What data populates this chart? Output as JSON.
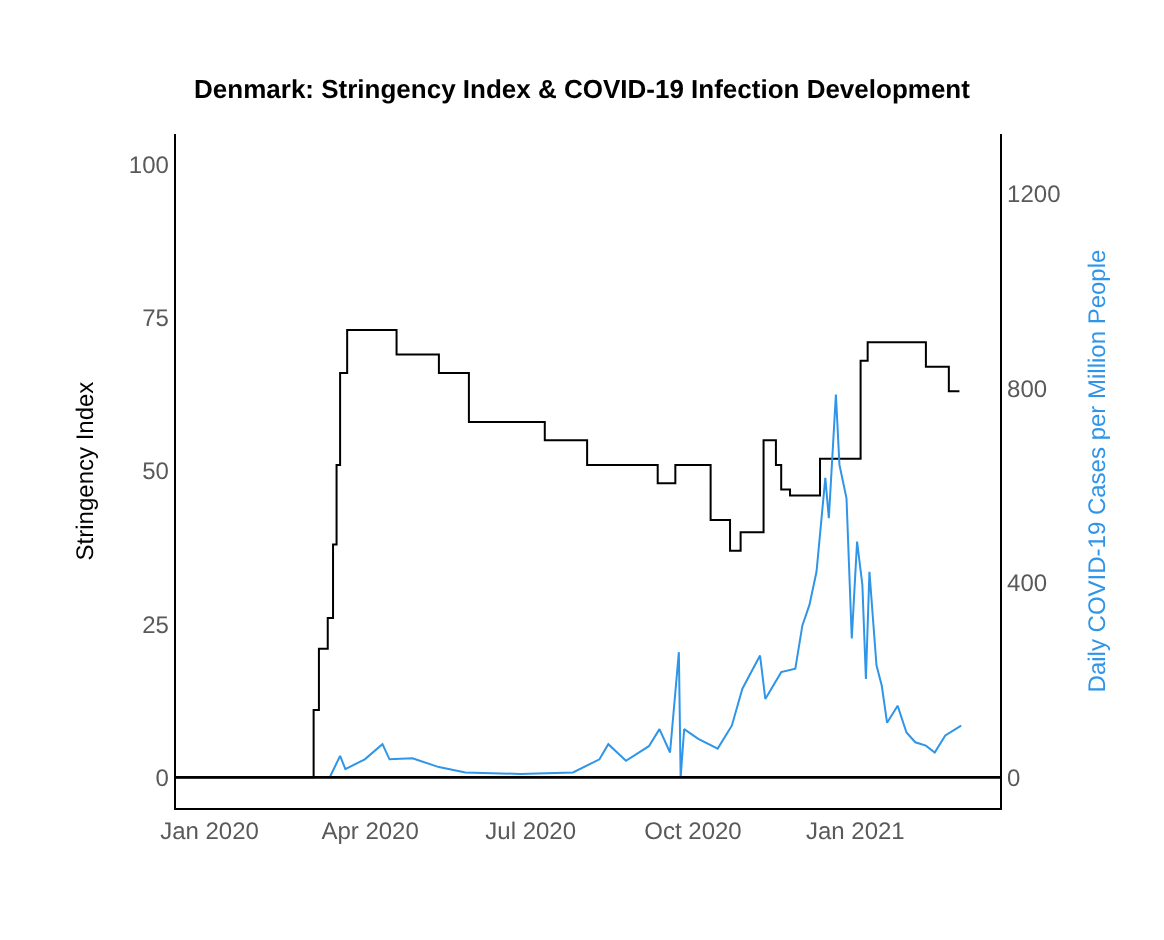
{
  "chart_data": {
    "type": "line",
    "title": "Denmark: Stringency Index & COVID-19 Infection Development",
    "ylabel": "Stringency Index",
    "y2label": "Daily COVID-19 Cases per Million People",
    "xlim": [
      "2019-12-13",
      "2021-03-24"
    ],
    "xticks": [
      {
        "value": "2020-01-01",
        "label": "Jan 2020"
      },
      {
        "value": "2020-04-01",
        "label": "Apr 2020"
      },
      {
        "value": "2020-07-01",
        "label": "Jul 2020"
      },
      {
        "value": "2020-10-01",
        "label": "Oct 2020"
      },
      {
        "value": "2021-01-01",
        "label": "Jan 2021"
      }
    ],
    "ylim": [
      -5,
      105
    ],
    "yticks": [
      0,
      25,
      50,
      75,
      100
    ],
    "y2lim": [
      -62,
      1322
    ],
    "y2ticks": [
      0,
      400,
      800,
      1200
    ],
    "grid": false,
    "ref_lines": [
      {
        "axis": "y",
        "value": 0,
        "color": "#000000"
      }
    ],
    "series": [
      {
        "type": "step",
        "color": "#000000",
        "x": [
          "2019-12-13",
          "2020-02-29",
          "2020-03-03",
          "2020-03-08",
          "2020-03-11",
          "2020-03-13",
          "2020-03-15",
          "2020-03-19",
          "2020-04-16",
          "2020-05-10",
          "2020-05-27",
          "2020-07-09",
          "2020-08-02",
          "2020-09-11",
          "2020-09-21",
          "2020-10-11",
          "2020-10-22",
          "2020-10-28",
          "2020-11-10",
          "2020-11-17",
          "2020-11-20",
          "2020-11-25",
          "2020-12-12",
          "2021-01-04",
          "2021-01-08",
          "2021-02-10",
          "2021-02-23",
          "2021-03-01"
        ],
        "values": [
          0,
          11,
          21,
          26,
          38,
          51,
          66,
          73,
          69,
          66,
          58,
          55,
          51,
          48,
          51,
          42,
          37,
          40,
          55,
          51,
          47,
          46,
          52,
          68,
          71,
          67,
          63,
          63
        ]
      },
      {
        "axis": "y2",
        "color": "#2f95e8",
        "x": [
          "2020-03-09",
          "2020-03-15",
          "2020-03-18",
          "2020-03-29",
          "2020-04-08",
          "2020-04-12",
          "2020-04-25",
          "2020-05-10",
          "2020-05-25",
          "2020-06-25",
          "2020-07-25",
          "2020-08-09",
          "2020-08-14",
          "2020-08-24",
          "2020-09-06",
          "2020-09-12",
          "2020-09-18",
          "2020-09-23",
          "2020-09-24",
          "2020-09-26",
          "2020-10-04",
          "2020-10-15",
          "2020-10-23",
          "2020-10-29",
          "2020-11-08",
          "2020-11-11",
          "2020-11-20",
          "2020-11-28",
          "2020-12-02",
          "2020-12-06",
          "2020-12-10",
          "2020-12-15",
          "2020-12-17",
          "2020-12-21",
          "2020-12-23",
          "2020-12-27",
          "2020-12-30",
          "2021-01-02",
          "2021-01-05",
          "2021-01-07",
          "2021-01-09",
          "2021-01-13",
          "2021-01-16",
          "2021-01-19",
          "2021-01-25",
          "2021-01-30",
          "2021-02-04",
          "2021-02-10",
          "2021-02-15",
          "2021-02-21",
          "2021-03-02"
        ],
        "values": [
          0,
          45,
          18,
          38,
          69,
          38,
          40,
          22,
          11,
          8,
          11,
          38,
          69,
          35,
          65,
          100,
          52,
          258,
          0,
          100,
          80,
          60,
          107,
          183,
          251,
          162,
          217,
          224,
          313,
          355,
          423,
          616,
          533,
          787,
          643,
          574,
          286,
          485,
          396,
          203,
          423,
          231,
          189,
          113,
          148,
          93,
          73,
          66,
          52,
          87,
          107
        ]
      }
    ]
  }
}
